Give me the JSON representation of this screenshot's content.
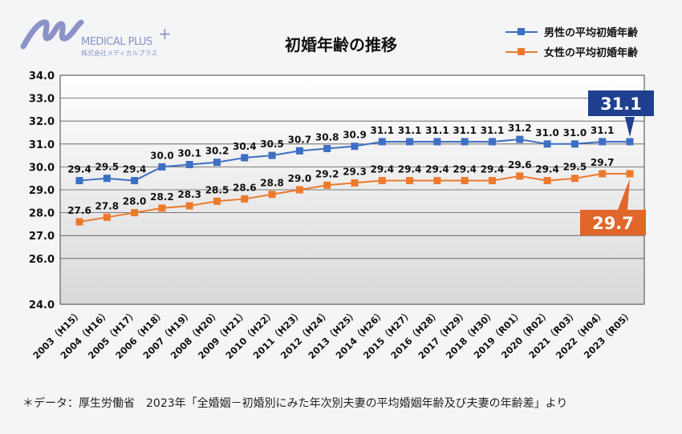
{
  "logo": {
    "name": "MEDICAL PLUS",
    "plus": "+",
    "sub": "株式会社メディカルプラス"
  },
  "chart_data": {
    "type": "line",
    "title": "初婚年齢の推移",
    "categories": [
      "2003（H15）",
      "2004（H16）",
      "2005（H17）",
      "2006（H18）",
      "2007（H19）",
      "2008（H20）",
      "2009（H21）",
      "2010（H22）",
      "2011（H23）",
      "2012（H24）",
      "2013（H25）",
      "2014（H26）",
      "2015（H27）",
      "2016（H28）",
      "2017（H29）",
      "2018（H30）",
      "2019（R01）",
      "2020（R02）",
      "2021（R03）",
      "2022（H04）",
      "2023（R05）"
    ],
    "series": [
      {
        "name": "男性の平均初婚年齢",
        "color": "#3d6fc4",
        "values": [
          29.4,
          29.5,
          29.4,
          30.0,
          30.1,
          30.2,
          30.4,
          30.5,
          30.7,
          30.8,
          30.9,
          31.1,
          31.1,
          31.1,
          31.1,
          31.1,
          31.2,
          31.0,
          31.0,
          31.1,
          31.1
        ],
        "callout": "31.1",
        "callout_color": "#1f3f8f"
      },
      {
        "name": "女性の平均初婚年齢",
        "color": "#ec7a2c",
        "values": [
          27.6,
          27.8,
          28.0,
          28.2,
          28.3,
          28.5,
          28.6,
          28.8,
          29.0,
          29.2,
          29.3,
          29.4,
          29.4,
          29.4,
          29.4,
          29.4,
          29.6,
          29.4,
          29.5,
          29.7,
          29.7
        ],
        "callout": "29.7",
        "callout_color": "#e0662a"
      }
    ],
    "ylim": [
      24.0,
      34.0
    ],
    "yticks": [
      "24.0",
      "26.0",
      "27.0",
      "28.0",
      "29.0",
      "30.0",
      "31.0",
      "32.0",
      "33.0",
      "34.0"
    ],
    "grid": true,
    "legend": "top-right"
  },
  "footnote": "＊データ：厚生労働省　2023年「全婚姻－初婚別にみた年次別夫妻の平均婚姻年齢及び夫妻の年齢差」より"
}
